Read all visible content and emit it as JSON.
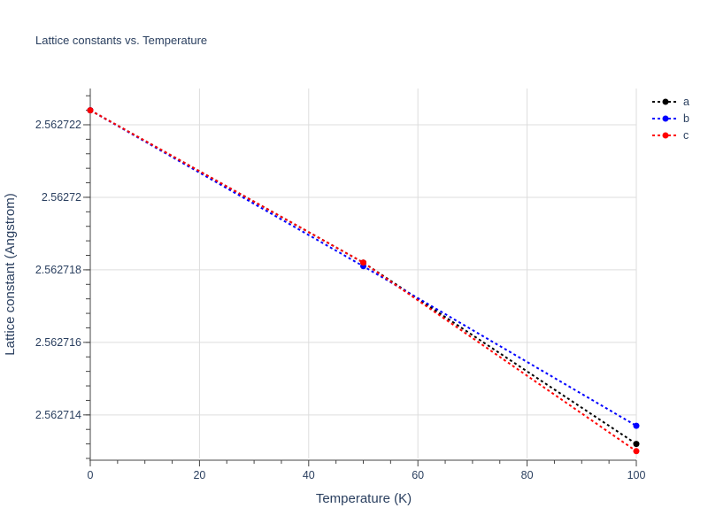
{
  "chart_data": {
    "type": "line",
    "title": "Lattice constants vs. Temperature",
    "xlabel": "Temperature (K)",
    "ylabel": "Lattice constant (Angstrom)",
    "xlim": [
      0,
      100
    ],
    "ylim": [
      2.5627128,
      2.562723
    ],
    "x_ticks": [
      0,
      20,
      40,
      60,
      80,
      100
    ],
    "x_tick_labels": [
      "0",
      "20",
      "40",
      "60",
      "80",
      "100"
    ],
    "y_ticks": [
      2.562714,
      2.562716,
      2.562718,
      2.56272,
      2.562722
    ],
    "y_tick_labels": [
      "2.562714",
      "2.562716",
      "2.562718",
      "2.56272",
      "2.562722"
    ],
    "grid": true,
    "legend_position": "top-right",
    "line_style": "dotted",
    "x": [
      0,
      50,
      100
    ],
    "series": [
      {
        "name": "a",
        "color": "#000000",
        "values": [
          2.5627224,
          2.5627182,
          2.5627132
        ]
      },
      {
        "name": "b",
        "color": "#0000ff",
        "values": [
          2.5627224,
          2.5627181,
          2.5627137
        ]
      },
      {
        "name": "c",
        "color": "#ff0000",
        "values": [
          2.5627224,
          2.5627182,
          2.562713
        ]
      }
    ]
  }
}
